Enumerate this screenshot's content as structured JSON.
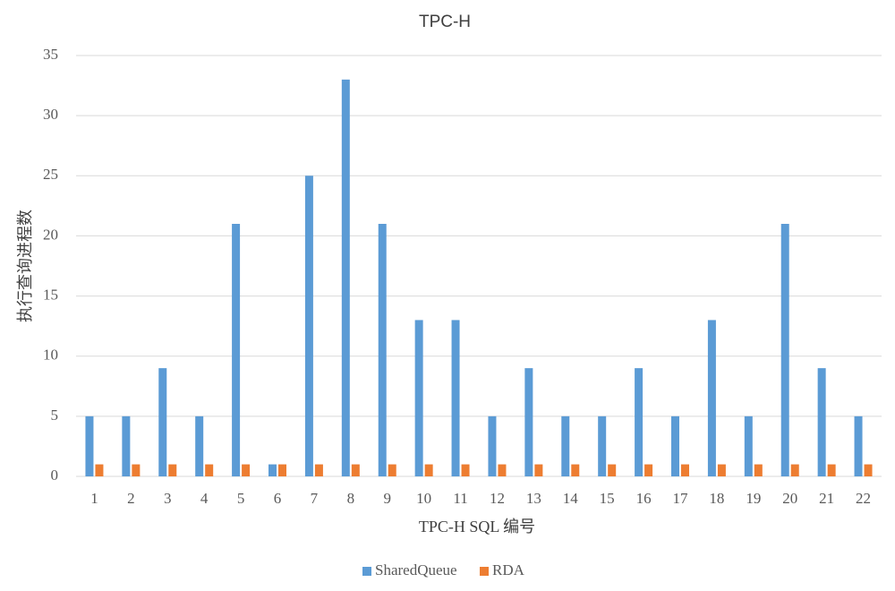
{
  "chart_data": {
    "type": "bar",
    "title": "TPC-H",
    "x_label": "TPC-H SQL 编号",
    "y_label": "执行查询进程数",
    "categories": [
      "1",
      "2",
      "3",
      "4",
      "5",
      "6",
      "7",
      "8",
      "9",
      "10",
      "11",
      "12",
      "13",
      "14",
      "15",
      "16",
      "17",
      "18",
      "19",
      "20",
      "21",
      "22"
    ],
    "series": [
      {
        "name": "SharedQueue",
        "color": "#5b9bd5",
        "values": [
          5,
          5,
          9,
          5,
          21,
          1,
          25,
          33,
          21,
          13,
          13,
          5,
          9,
          5,
          5,
          9,
          5,
          13,
          5,
          21,
          9,
          5
        ]
      },
      {
        "name": "RDA",
        "color": "#ed7d31",
        "values": [
          1,
          1,
          1,
          1,
          1,
          1,
          1,
          1,
          1,
          1,
          1,
          1,
          1,
          1,
          1,
          1,
          1,
          1,
          1,
          1,
          1,
          1
        ]
      }
    ],
    "ylim": [
      0,
      35
    ],
    "yticks": [
      0,
      5,
      10,
      15,
      20,
      25,
      30,
      35
    ],
    "grid": true,
    "legend": "bottom"
  }
}
